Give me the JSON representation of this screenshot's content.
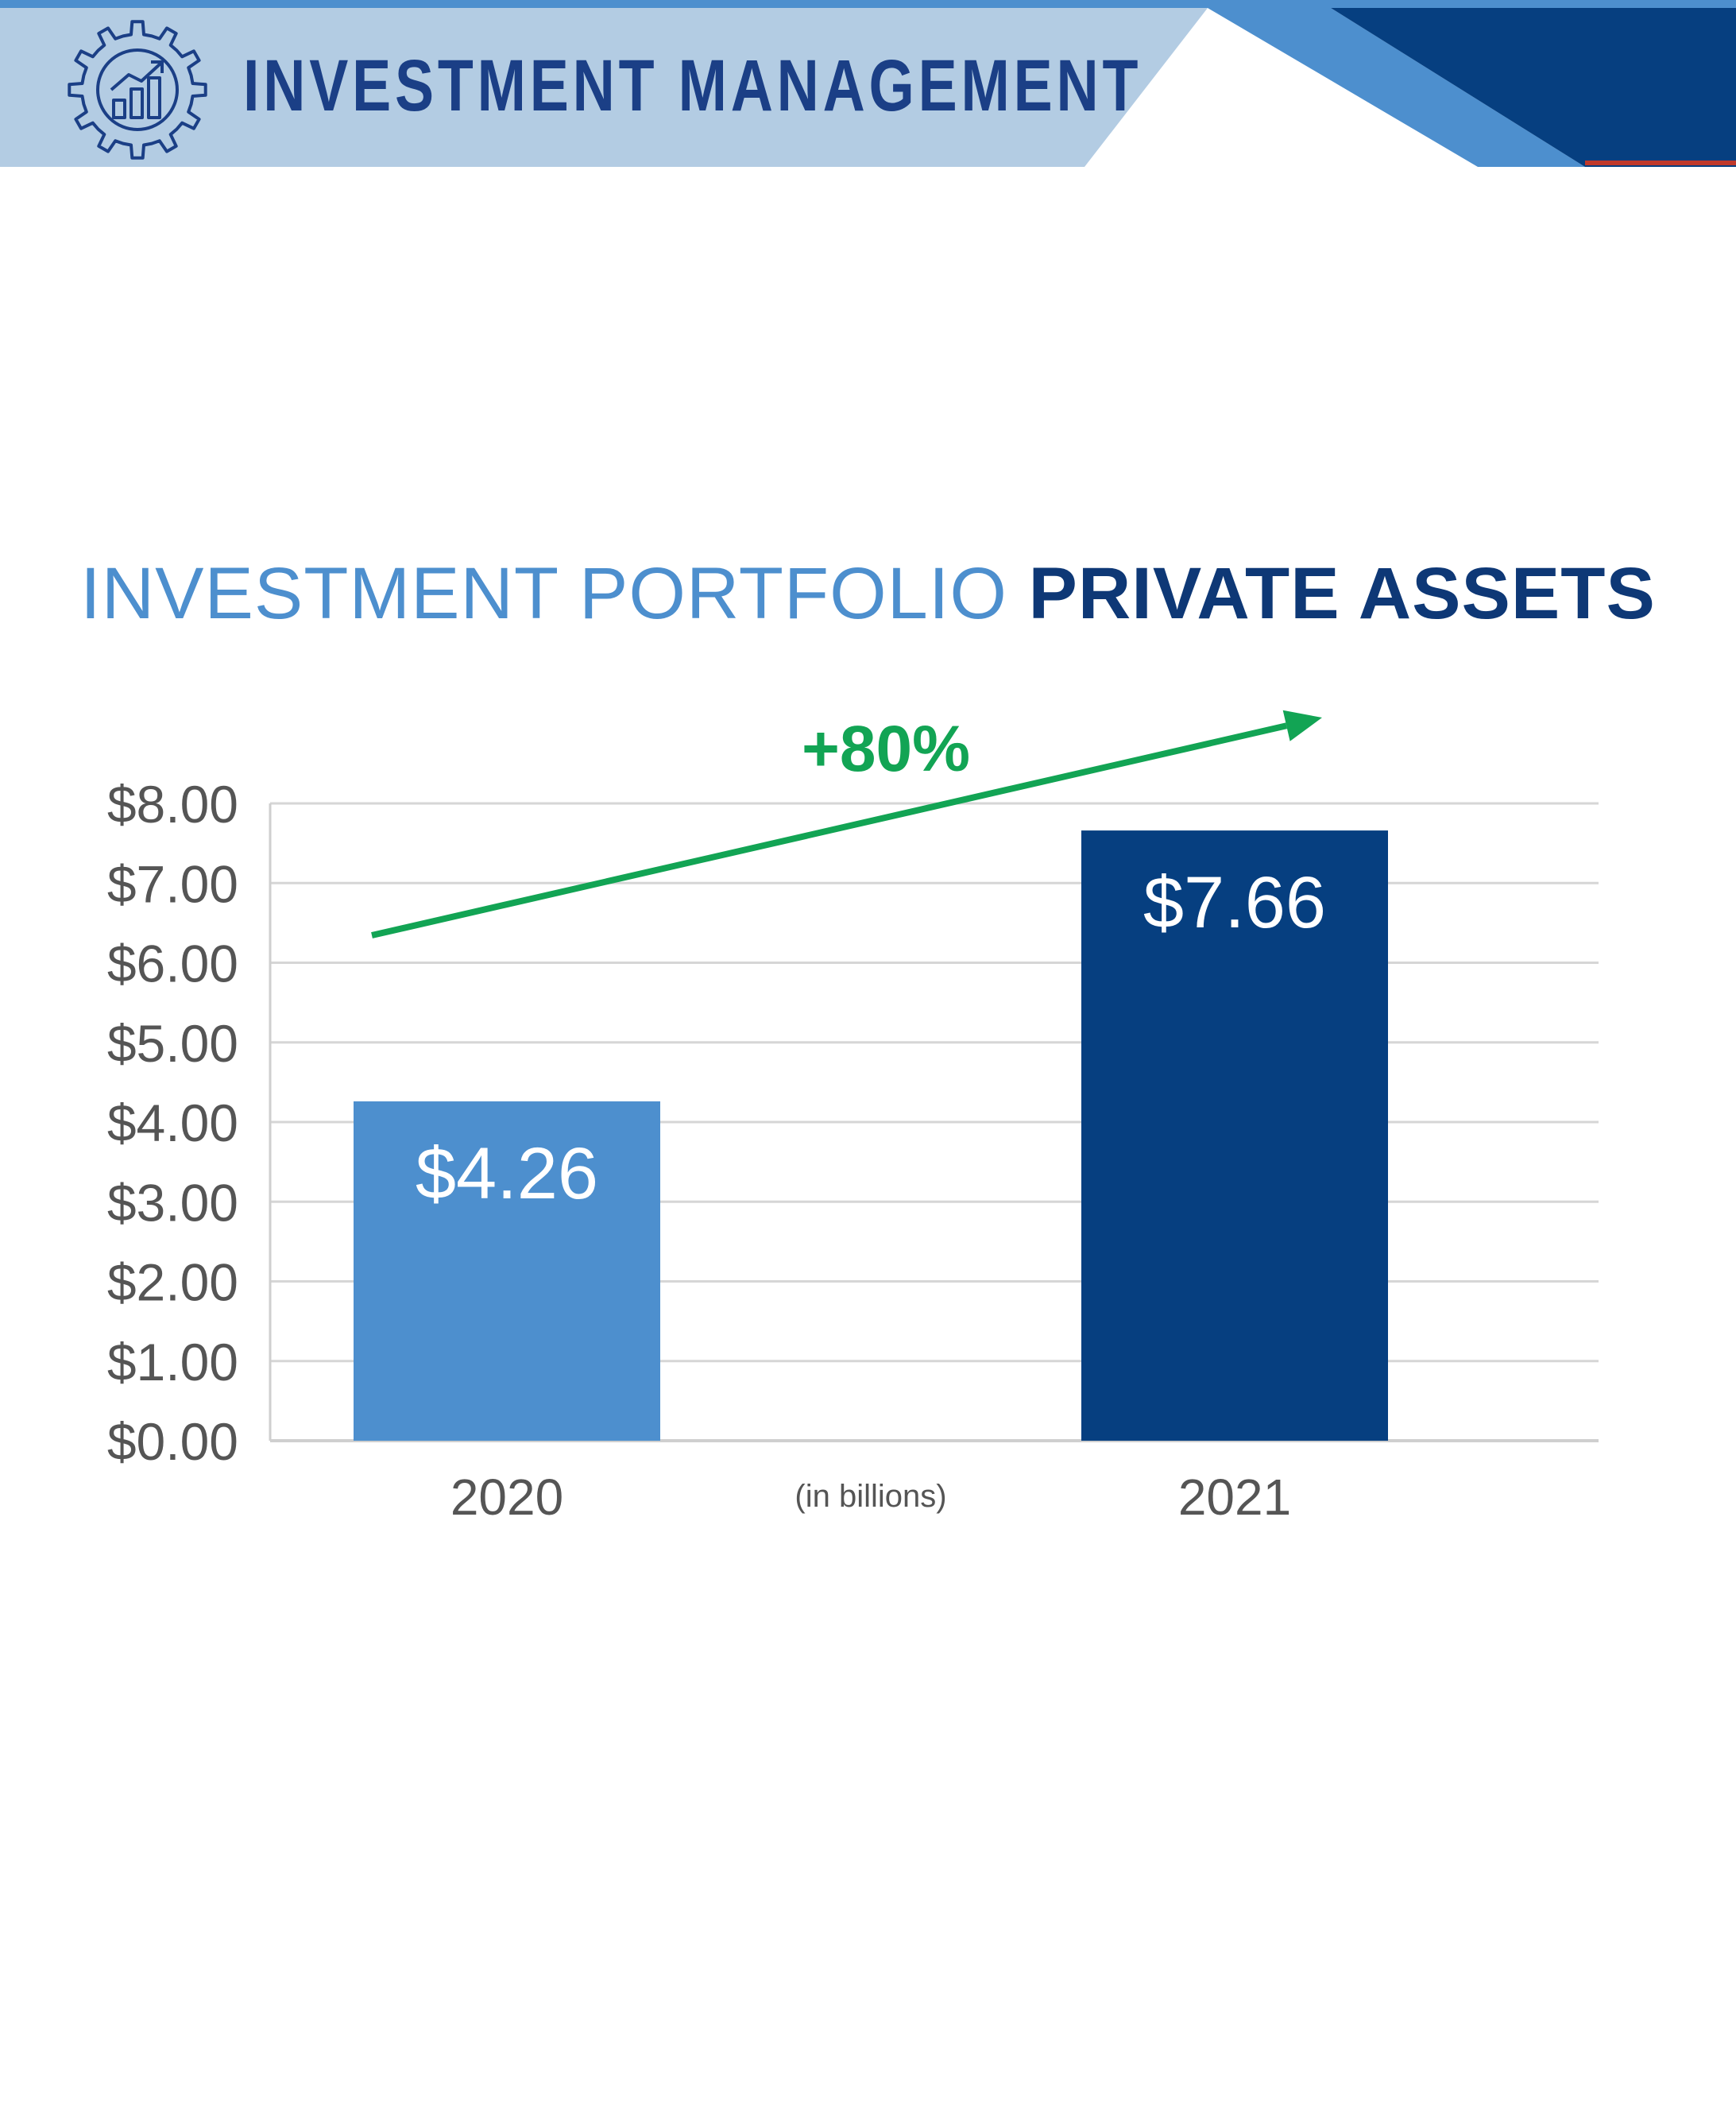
{
  "header": {
    "title": "INVESTMENT MANAGEMENT",
    "icon": "gear-chart-icon"
  },
  "colors": {
    "banner_light": "#b3cce3",
    "banner_mid": "#4d8fce",
    "banner_dark": "#063f80",
    "accent_red": "#c0392b",
    "bar_2020": "#4d8fce",
    "bar_2021": "#063f80",
    "growth_green": "#12a454",
    "axis_text": "#555555"
  },
  "chart_data": {
    "type": "bar",
    "title_part1": "INVESTMENT PORTFOLIO",
    "title_part2": "PRIVATE ASSETS",
    "categories": [
      "2020",
      "2021"
    ],
    "values": [
      4.26,
      7.66
    ],
    "value_labels": [
      "$4.26",
      "$7.66"
    ],
    "ylim": [
      0,
      8
    ],
    "yticks": [
      {
        "value": 0,
        "label": "$0.00"
      },
      {
        "value": 1,
        "label": "$1.00"
      },
      {
        "value": 2,
        "label": "$2.00"
      },
      {
        "value": 3,
        "label": "$3.00"
      },
      {
        "value": 4,
        "label": "$4.00"
      },
      {
        "value": 5,
        "label": "$5.00"
      },
      {
        "value": 6,
        "label": "$6.00"
      },
      {
        "value": 7,
        "label": "$7.00"
      },
      {
        "value": 8,
        "label": "$8.00"
      }
    ],
    "unit_note": "(in billions)",
    "growth_label": "+80%",
    "grid": true,
    "legend": "none"
  }
}
